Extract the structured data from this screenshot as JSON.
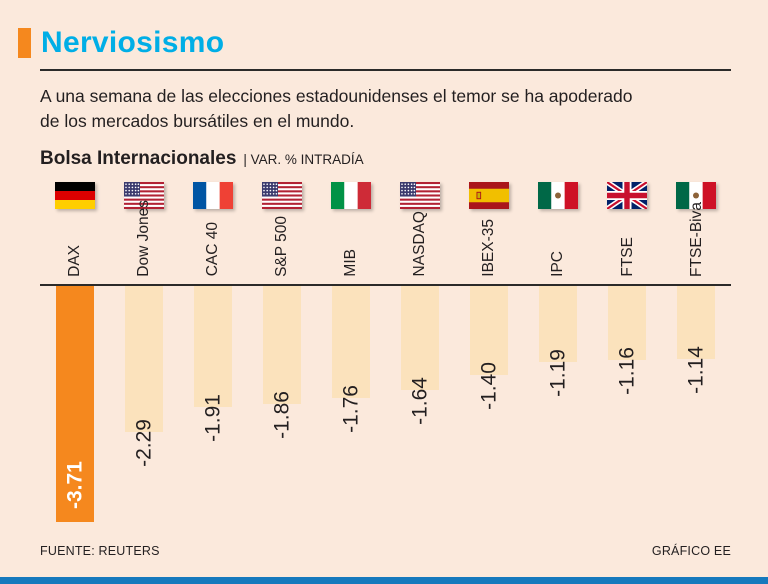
{
  "header": {
    "title": "Nerviosismo",
    "intro": "A una semana de las elecciones estadounidenses el temor se ha apoderado\nde los mercados bursátiles en el mundo.",
    "section_title": "Bolsa Internacionales",
    "section_subtitle": "| VAR. % INTRADÍA"
  },
  "footer": {
    "source": "FUENTE: REUTERS",
    "credit": "GRÁFICO EE"
  },
  "colors": {
    "background": "#fbe9dc",
    "title_cyan": "#00AEE6",
    "accent_orange": "#F5881E",
    "bar_light": "#FBE2BC",
    "bar_highlight": "#F5881E",
    "text_dark": "#231f20",
    "baseline_dark": "#2b2a29",
    "bottom_bar_blue": "#1679BD"
  },
  "chart_data": {
    "type": "bar",
    "title": "Bolsa Internacionales",
    "subtitle": "VAR. % INTRADÍA",
    "orientation": "vertical-negative-from-baseline",
    "categories": [
      "DAX",
      "Dow Jones",
      "CAC 40",
      "S&P 500",
      "MIB",
      "NASDAQ",
      "IBEX-35",
      "IPC",
      "FTSE",
      "FTSE-Biva"
    ],
    "values": [
      -3.71,
      -2.29,
      -1.91,
      -1.86,
      -1.76,
      -1.64,
      -1.4,
      -1.19,
      -1.16,
      -1.14
    ],
    "value_labels": [
      "-3.71",
      "-2.29",
      "-1.91",
      "-1.86",
      "-1.76",
      "-1.64",
      "-1.40",
      "-1.19",
      "-1.16",
      "-1.14"
    ],
    "flags": [
      "germany",
      "usa",
      "france",
      "usa",
      "italy",
      "usa",
      "spain",
      "mexico",
      "uk",
      "mexico"
    ],
    "highlight_index": 0,
    "ylim": [
      -3.71,
      0
    ],
    "grid": false,
    "legend": false
  }
}
